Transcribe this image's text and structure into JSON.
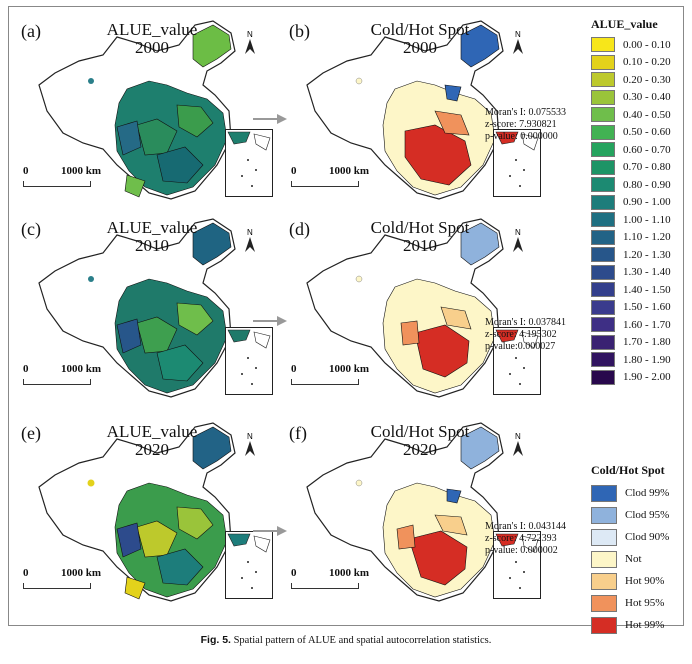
{
  "panels": [
    {
      "letter": "(a)",
      "title_line1": "ALUE_value",
      "title_line2": "2000",
      "kind": "value"
    },
    {
      "letter": "(b)",
      "title_line1": "Cold/Hot Spot",
      "title_line2": "2000",
      "kind": "hotspot"
    },
    {
      "letter": "(c)",
      "title_line1": "ALUE_value",
      "title_line2": "2010",
      "kind": "value"
    },
    {
      "letter": "(d)",
      "title_line1": "Cold/Hot Spot",
      "title_line2": "2010",
      "kind": "hotspot"
    },
    {
      "letter": "(e)",
      "title_line1": "ALUE_value",
      "title_line2": "2020",
      "kind": "value"
    },
    {
      "letter": "(f)",
      "title_line1": "Cold/Hot Spot",
      "title_line2": "2020",
      "kind": "hotspot"
    }
  ],
  "north_label": "N",
  "scale": {
    "zero": "0",
    "distance": "1000 km"
  },
  "stats": [
    {
      "moran": "Moran's I: 0.075533",
      "z": "z-score: 7.930821",
      "p": "p-value: 0.000000"
    },
    {
      "moran": "Moran's I: 0.037841",
      "z": "z-score: 4.195302",
      "p": "p-value:0.000027"
    },
    {
      "moran": "Moran's I: 0.043144",
      "z": "z-score: 4.722393",
      "p": "p-value: 0.000002"
    }
  ],
  "value_legend": {
    "title": "ALUE_value",
    "items": [
      {
        "label": "0.00 - 0.10",
        "color": "#f7e61a"
      },
      {
        "label": "0.10 - 0.20",
        "color": "#e3d21b"
      },
      {
        "label": "0.20 - 0.30",
        "color": "#bdc92c"
      },
      {
        "label": "0.30 - 0.40",
        "color": "#9ac43a"
      },
      {
        "label": "0.40 - 0.50",
        "color": "#6fbe4b"
      },
      {
        "label": "0.50 - 0.60",
        "color": "#42b253"
      },
      {
        "label": "0.60 - 0.70",
        "color": "#25a35e"
      },
      {
        "label": "0.70 - 0.80",
        "color": "#1d9466"
      },
      {
        "label": "0.80 - 0.90",
        "color": "#1c8a72"
      },
      {
        "label": "0.90 - 1.00",
        "color": "#1d7d7b"
      },
      {
        "label": "1.00 - 1.10",
        "color": "#1f7082"
      },
      {
        "label": "1.10 - 1.20",
        "color": "#226386"
      },
      {
        "label": "1.20 - 1.30",
        "color": "#27568a"
      },
      {
        "label": "1.30 - 1.40",
        "color": "#2d4b8c"
      },
      {
        "label": "1.40 - 1.50",
        "color": "#333f8c"
      },
      {
        "label": "1.50 - 1.60",
        "color": "#3a3b8d"
      },
      {
        "label": "1.60 - 1.70",
        "color": "#3e2f85"
      },
      {
        "label": "1.70 - 1.80",
        "color": "#3a2272"
      },
      {
        "label": "1.80 - 1.90",
        "color": "#311460"
      },
      {
        "label": "1.90 - 2.00",
        "color": "#28084c"
      }
    ]
  },
  "hotspot_legend": {
    "title": "Cold/Hot Spot",
    "items": [
      {
        "label": "Clod 99%",
        "color": "#2f66b5"
      },
      {
        "label": "Clod 95%",
        "color": "#8fb2dc"
      },
      {
        "label": "Clod 90%",
        "color": "#dde9f5"
      },
      {
        "label": "Not",
        "color": "#fdf6c8"
      },
      {
        "label": "Hot 90%",
        "color": "#f8cf8c"
      },
      {
        "label": "Hot 95%",
        "color": "#f0925c"
      },
      {
        "label": "Hot 99%",
        "color": "#d52d24"
      }
    ]
  },
  "caption": {
    "label": "Fig. 5.",
    "text": "Spatial pattern of ALUE and spatial autocorrelation statistics."
  }
}
